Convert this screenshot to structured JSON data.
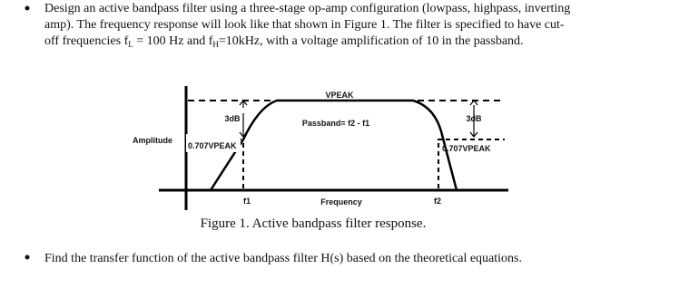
{
  "bullets": [
    {
      "lines": [
        "Design an active bandpass filter using a three-stage op-amp configuration (lowpass, highpass, inverting",
        "amp). The frequency response will look like that shown in Figure 1. The filter is specified to have cut-"
      ],
      "line3": {
        "a": "off frequencies f",
        "sub1": "L",
        "b": " = 100 Hz and f",
        "sub2": "H",
        "c": "=10kHz, with a voltage amplification of 10 in the passband."
      }
    },
    {
      "text": "Find the transfer function of the active bandpass filter H(s) based on the theoretical equations."
    }
  ],
  "figure": {
    "vpeak": "VPEAK",
    "db_left": "3dB",
    "db_right": "3dB",
    "passband": "Passband= f2 - f1",
    "y_label": "Amplitude",
    "level_left": "0.707VPEAK",
    "level_right": "0.707VPEAK",
    "f1": "f1",
    "x_label": "Frequency",
    "f2": "f2",
    "caption": "Figure 1. Active bandpass filter response."
  }
}
